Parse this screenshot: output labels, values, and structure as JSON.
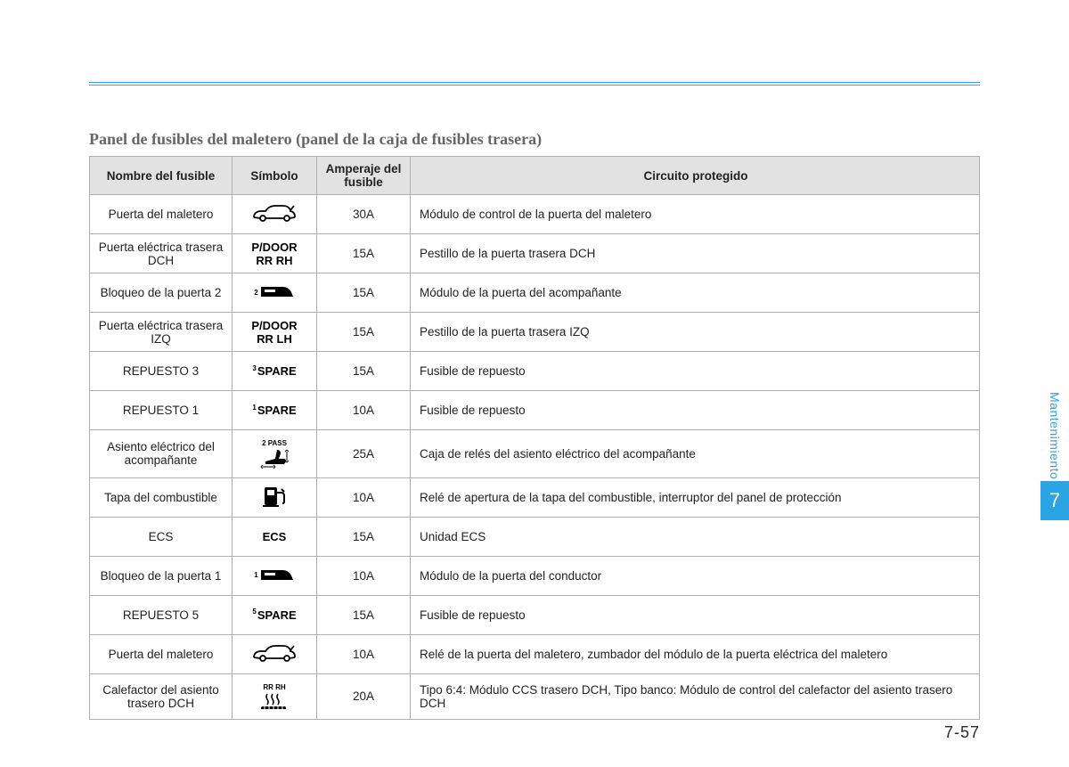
{
  "colors": {
    "accent": "#2aa4e2",
    "header_bg": "#e2e2e2",
    "border": "#b0b0b0",
    "title": "#666666",
    "text": "#222222"
  },
  "title": "Panel de fusibles del maletero (panel de la caja de fusibles trasera)",
  "side": {
    "label": "Mantenimiento",
    "chapter": "7"
  },
  "page_number": "7-57",
  "columns": [
    "Nombre del fusible",
    "Símbolo",
    "Amperaje del fusible",
    "Circuito protegido"
  ],
  "rows": [
    {
      "name": "Puerta del maletero",
      "symbol": {
        "type": "car"
      },
      "amp": "30A",
      "circuit": "Módulo de control de la puerta del maletero"
    },
    {
      "name": "Puerta eléctrica trasera DCH",
      "symbol": {
        "type": "text",
        "lines": [
          "P/DOOR",
          "RR RH"
        ]
      },
      "amp": "15A",
      "circuit": "Pestillo de la puerta trasera DCH"
    },
    {
      "name": "Bloqueo de la puerta 2",
      "symbol": {
        "type": "door",
        "sup": "2"
      },
      "amp": "15A",
      "circuit": "Módulo de la puerta del acompañante"
    },
    {
      "name": "Puerta eléctrica trasera IZQ",
      "symbol": {
        "type": "text",
        "lines": [
          "P/DOOR",
          "RR LH"
        ]
      },
      "amp": "15A",
      "circuit": "Pestillo de la puerta trasera IZQ"
    },
    {
      "name": "REPUESTO 3",
      "symbol": {
        "type": "text",
        "sup": "3",
        "lines": [
          "SPARE"
        ]
      },
      "amp": "15A",
      "circuit": "Fusible de repuesto"
    },
    {
      "name": "REPUESTO 1",
      "symbol": {
        "type": "text",
        "sup": "1",
        "lines": [
          "SPARE"
        ]
      },
      "amp": "10A",
      "circuit": "Fusible de repuesto"
    },
    {
      "name": "Asiento eléctrico del acompañante",
      "symbol": {
        "type": "seat",
        "sup": "2 PASS"
      },
      "amp": "25A",
      "circuit": "Caja de relés del asiento eléctrico del acompañante"
    },
    {
      "name": "Tapa del combustible",
      "symbol": {
        "type": "fuel"
      },
      "amp": "10A",
      "circuit": "Relé de apertura de la tapa del combustible, interruptor del panel de protección"
    },
    {
      "name": "ECS",
      "symbol": {
        "type": "text",
        "lines": [
          "ECS"
        ]
      },
      "amp": "15A",
      "circuit": "Unidad ECS"
    },
    {
      "name": "Bloqueo de la puerta 1",
      "symbol": {
        "type": "door",
        "sup": "1"
      },
      "amp": "10A",
      "circuit": "Módulo de la puerta del conductor"
    },
    {
      "name": "REPUESTO 5",
      "symbol": {
        "type": "text",
        "sup": "5",
        "lines": [
          "SPARE"
        ]
      },
      "amp": "15A",
      "circuit": "Fusible de repuesto"
    },
    {
      "name": "Puerta del maletero",
      "symbol": {
        "type": "car"
      },
      "amp": "10A",
      "circuit": "Relé de la puerta del maletero, zumbador del módulo de la puerta eléctrica del maletero"
    },
    {
      "name": "Calefactor del asiento trasero DCH",
      "symbol": {
        "type": "heat",
        "sup": "RR RH"
      },
      "amp": "20A",
      "circuit": "Tipo 6:4: Módulo CCS trasero DCH, Tipo banco: Módulo de control del calefactor del asiento trasero DCH"
    }
  ]
}
